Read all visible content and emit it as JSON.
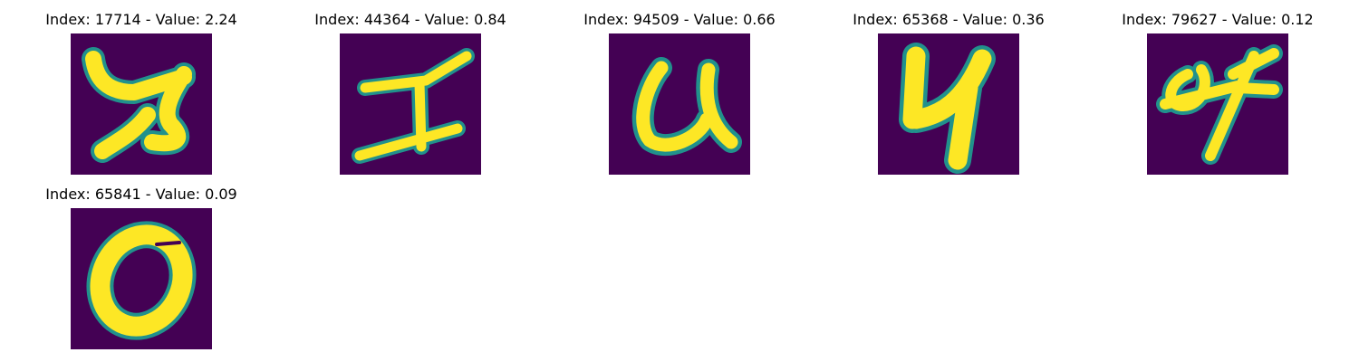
{
  "colors": {
    "background": "#440154",
    "glyph": "#fde725",
    "edge": "#21918c"
  },
  "panels": [
    {
      "title": "Index: 17714 - Value: 2.24",
      "icon": "handwritten-glyph"
    },
    {
      "title": "Index: 44364 - Value: 0.84",
      "icon": "handwritten-glyph"
    },
    {
      "title": "Index: 94509 - Value: 0.66",
      "icon": "handwritten-glyph"
    },
    {
      "title": "Index: 65368 - Value: 0.36",
      "icon": "handwritten-glyph"
    },
    {
      "title": "Index: 79627 - Value: 0.12",
      "icon": "handwritten-glyph"
    },
    {
      "title": "Index: 65841 - Value: 0.09",
      "icon": "handwritten-glyph"
    }
  ]
}
